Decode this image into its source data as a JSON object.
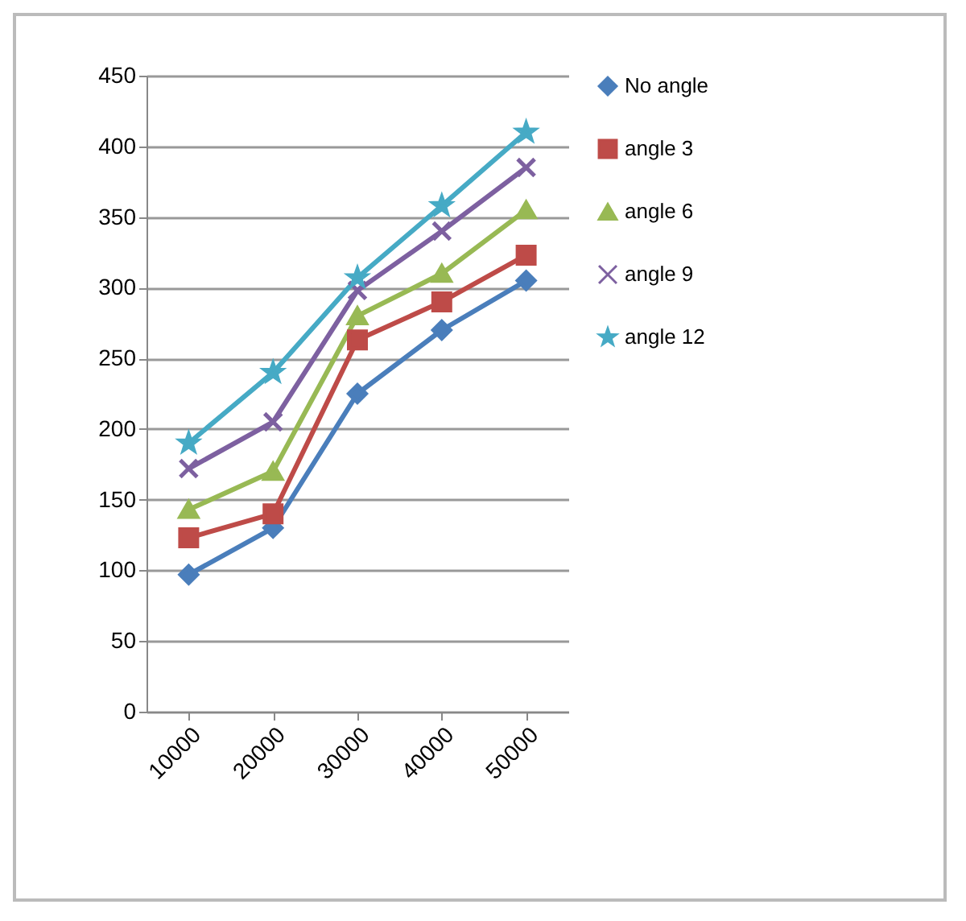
{
  "chart_data": {
    "type": "line",
    "categories": [
      "10000",
      "20000",
      "30000",
      "40000",
      "50000"
    ],
    "ylim": [
      0,
      450
    ],
    "yticks": [
      0,
      50,
      100,
      150,
      200,
      250,
      300,
      350,
      400,
      450
    ],
    "grid": "y",
    "legend": "right",
    "series": [
      {
        "name": "No angle",
        "color": "#4a7ebb",
        "marker": "diamond",
        "values": [
          97,
          130,
          225,
          270,
          305
        ]
      },
      {
        "name": "angle 3",
        "color": "#be4b48",
        "marker": "square",
        "values": [
          123,
          140,
          263,
          290,
          323
        ]
      },
      {
        "name": "angle 6",
        "color": "#98b954",
        "marker": "triangle",
        "values": [
          143,
          170,
          280,
          310,
          355
        ]
      },
      {
        "name": "angle 9",
        "color": "#7d60a0",
        "marker": "cross",
        "values": [
          172,
          205,
          298,
          340,
          385
        ]
      },
      {
        "name": "angle 12",
        "color": "#46aac5",
        "marker": "star",
        "values": [
          190,
          240,
          307,
          358,
          410
        ]
      }
    ]
  }
}
